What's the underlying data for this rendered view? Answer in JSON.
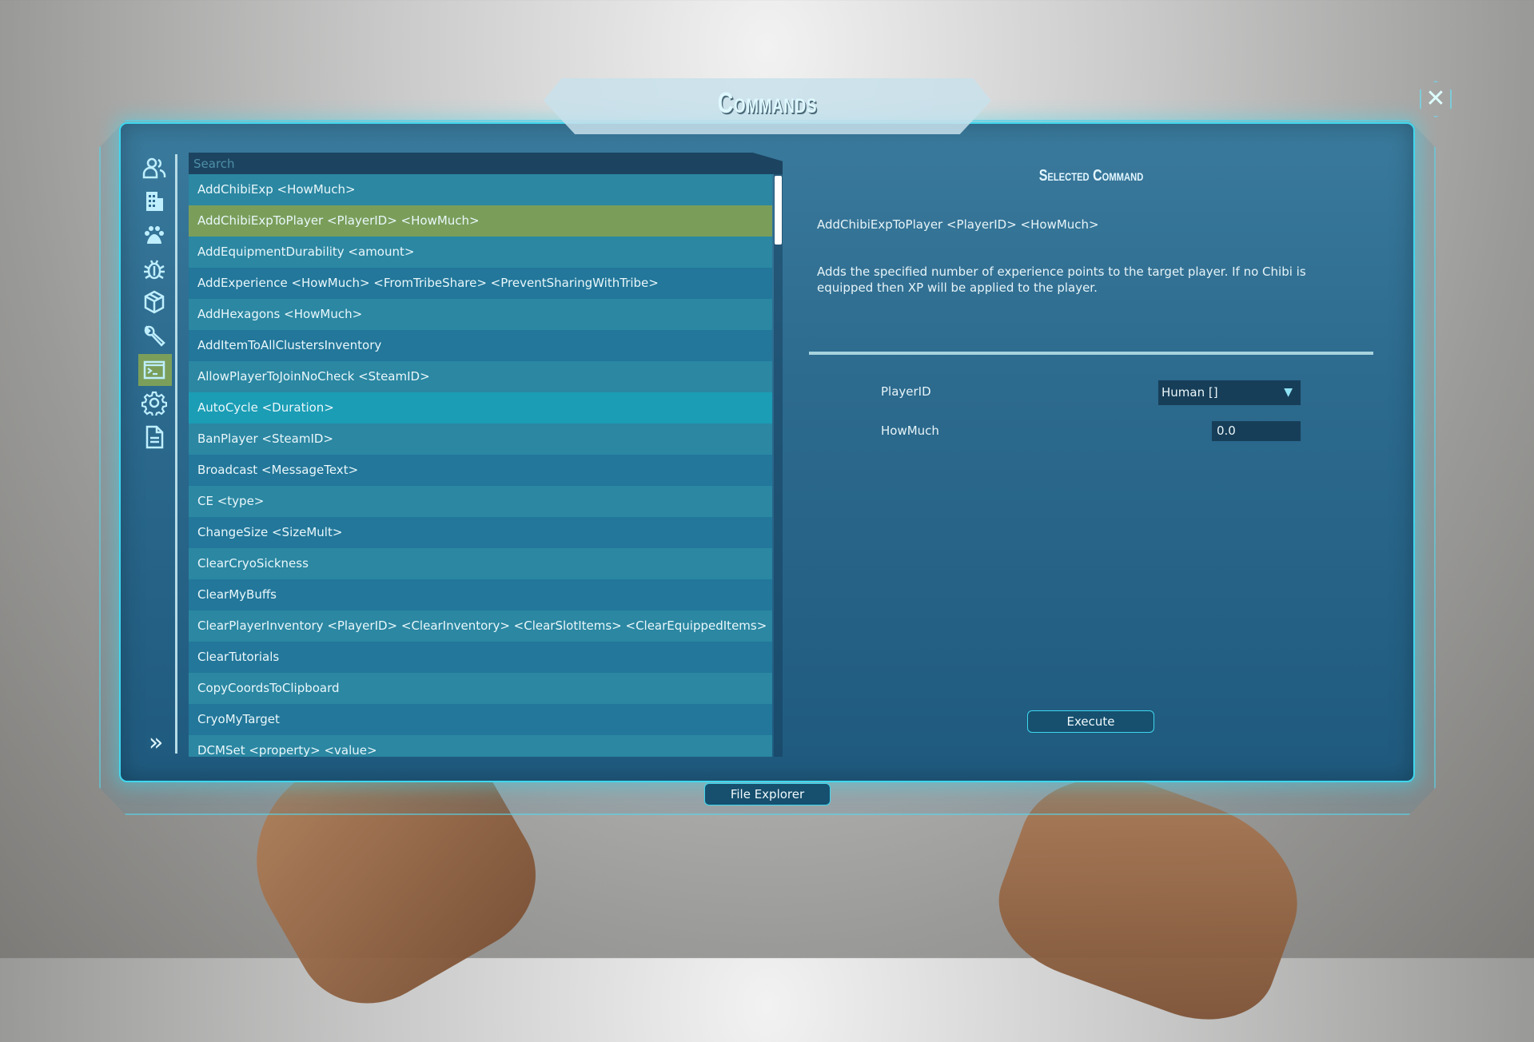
{
  "window": {
    "title": "Commands",
    "close": "✕"
  },
  "sidebar": {
    "items": [
      {
        "icon": "players-icon"
      },
      {
        "icon": "building-icon"
      },
      {
        "icon": "paw-icon"
      },
      {
        "icon": "bug-icon"
      },
      {
        "icon": "box-icon"
      },
      {
        "icon": "wrench-icon"
      },
      {
        "icon": "terminal-icon",
        "active": true
      },
      {
        "icon": "gear-icon"
      },
      {
        "icon": "document-icon"
      }
    ],
    "expand": "»"
  },
  "search": {
    "placeholder": "Search",
    "value": ""
  },
  "commands": [
    "AddChibiExp <HowMuch>",
    "AddChibiExpToPlayer <PlayerID> <HowMuch>",
    "AddEquipmentDurability <amount>",
    "AddExperience <HowMuch> <FromTribeShare> <PreventSharingWithTribe>",
    "AddHexagons <HowMuch>",
    "AddItemToAllClustersInventory",
    "AllowPlayerToJoinNoCheck <SteamID>",
    "AutoCycle <Duration>",
    "BanPlayer <SteamID>",
    "Broadcast <MessageText>",
    "CE <type>",
    "ChangeSize <SizeMult>",
    "ClearCryoSickness",
    "ClearMyBuffs",
    "ClearPlayerInventory <PlayerID> <ClearInventory> <ClearSlotItems> <ClearEquippedItems>",
    "ClearTutorials",
    "CopyCoordsToClipboard",
    "CryoMyTarget",
    "DCMSet <property> <value>"
  ],
  "selected_index": 1,
  "hover_index": 7,
  "detail": {
    "heading": "Selected Command",
    "command": "AddChibiExpToPlayer <PlayerID> <HowMuch>",
    "description": "Adds the specified number of experience points to the target player. If no Chibi is equipped then XP will be applied to the player.",
    "params": [
      {
        "label": "PlayerID",
        "value": "Human []"
      },
      {
        "label": "HowMuch",
        "value": "0.0"
      }
    ],
    "execute": "Execute"
  },
  "footer": {
    "file_explorer": "File Explorer"
  },
  "colors": {
    "accent": "#3fd7ee",
    "selected": "#7a9e5a",
    "panel": "#2c6a8e"
  }
}
